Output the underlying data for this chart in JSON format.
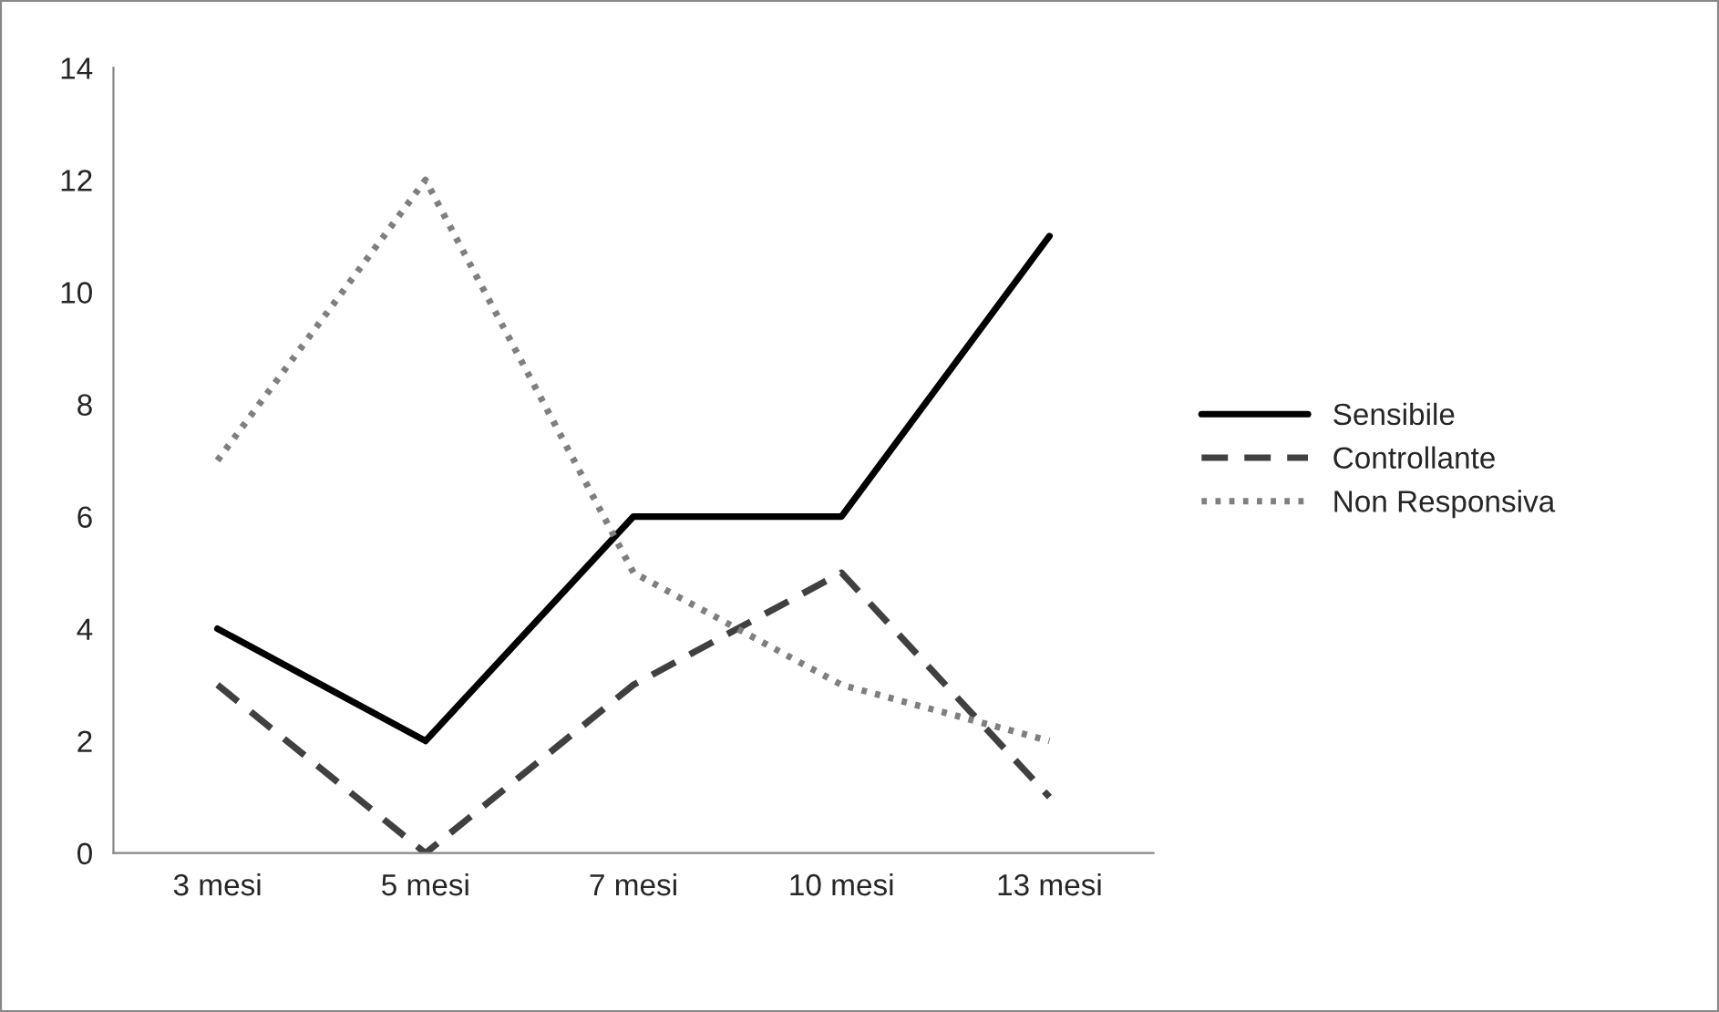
{
  "chart_data": {
    "type": "line",
    "categories": [
      "3 mesi",
      "5 mesi",
      "7 mesi",
      "10 mesi",
      "13 mesi"
    ],
    "series": [
      {
        "name": "Sensibile",
        "color": "#000000",
        "line_style": "solid",
        "values": [
          4,
          2,
          6,
          6,
          11
        ]
      },
      {
        "name": "Controllante",
        "color": "#404040",
        "line_style": "dashed",
        "values": [
          3,
          0,
          3,
          5,
          1
        ]
      },
      {
        "name": "Non Responsiva",
        "color": "#7f7f7f",
        "line_style": "dotted",
        "values": [
          7,
          12,
          5,
          3,
          2
        ]
      }
    ],
    "ylim": [
      0,
      14
    ],
    "yticks": [
      0,
      2,
      4,
      6,
      8,
      10,
      12,
      14
    ],
    "grid": false,
    "legend": "right",
    "marker": "none"
  }
}
